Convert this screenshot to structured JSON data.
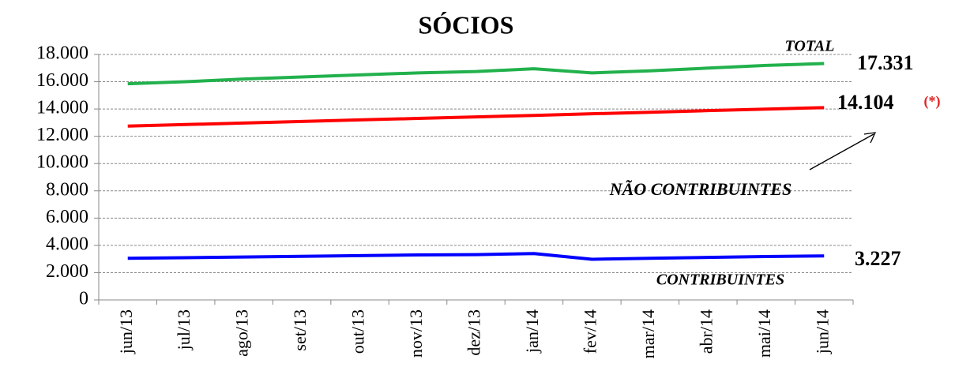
{
  "chart_data": {
    "type": "line",
    "title": "SÓCIOS",
    "categories": [
      "jun/13",
      "jul/13",
      "ago/13",
      "set/13",
      "out/13",
      "nov/13",
      "dez/13",
      "jan/14",
      "fev/14",
      "mar/14",
      "abr/14",
      "mai/14",
      "jun/14"
    ],
    "series": [
      {
        "name": "TOTAL",
        "color": "#22b14c",
        "values": [
          15850,
          16000,
          16200,
          16350,
          16500,
          16650,
          16750,
          16950,
          16650,
          16800,
          17000,
          17200,
          17331
        ],
        "value_labels": [
          null,
          null,
          null,
          null,
          null,
          null,
          null,
          null,
          null,
          null,
          null,
          null,
          "17.331"
        ]
      },
      {
        "name": "NÃO CONTRIBUINTES",
        "color": "#ff0000",
        "values": [
          12750,
          12860,
          12970,
          13090,
          13200,
          13310,
          13420,
          13530,
          13650,
          13760,
          13880,
          13990,
          14104
        ],
        "value_labels": [
          null,
          null,
          null,
          null,
          null,
          null,
          null,
          null,
          null,
          null,
          null,
          null,
          "14.104"
        ]
      },
      {
        "name": "CONTRIBUINTES",
        "color": "#0000ff",
        "values": [
          3050,
          3100,
          3150,
          3200,
          3250,
          3300,
          3320,
          3400,
          2980,
          3050,
          3120,
          3180,
          3227
        ],
        "value_labels": [
          null,
          null,
          null,
          null,
          null,
          null,
          null,
          null,
          null,
          null,
          null,
          null,
          "3.227"
        ]
      }
    ],
    "annotations": [
      "(*)"
    ],
    "ylim": [
      0,
      18000
    ],
    "yticks": [
      0,
      {
        "value": 2000,
        "label": "2.000"
      },
      {
        "value": 4000,
        "label": "4.000"
      },
      {
        "value": 6000,
        "label": "6.000"
      },
      {
        "value": 8000,
        "label": "8.000"
      },
      {
        "value": 10000,
        "label": "10.000"
      },
      {
        "value": 12000,
        "label": "12.000"
      },
      {
        "value": 14000,
        "label": "14.000"
      },
      {
        "value": 16000,
        "label": "16.000"
      },
      {
        "value": 18000,
        "label": "18.000"
      }
    ],
    "grid": true
  }
}
